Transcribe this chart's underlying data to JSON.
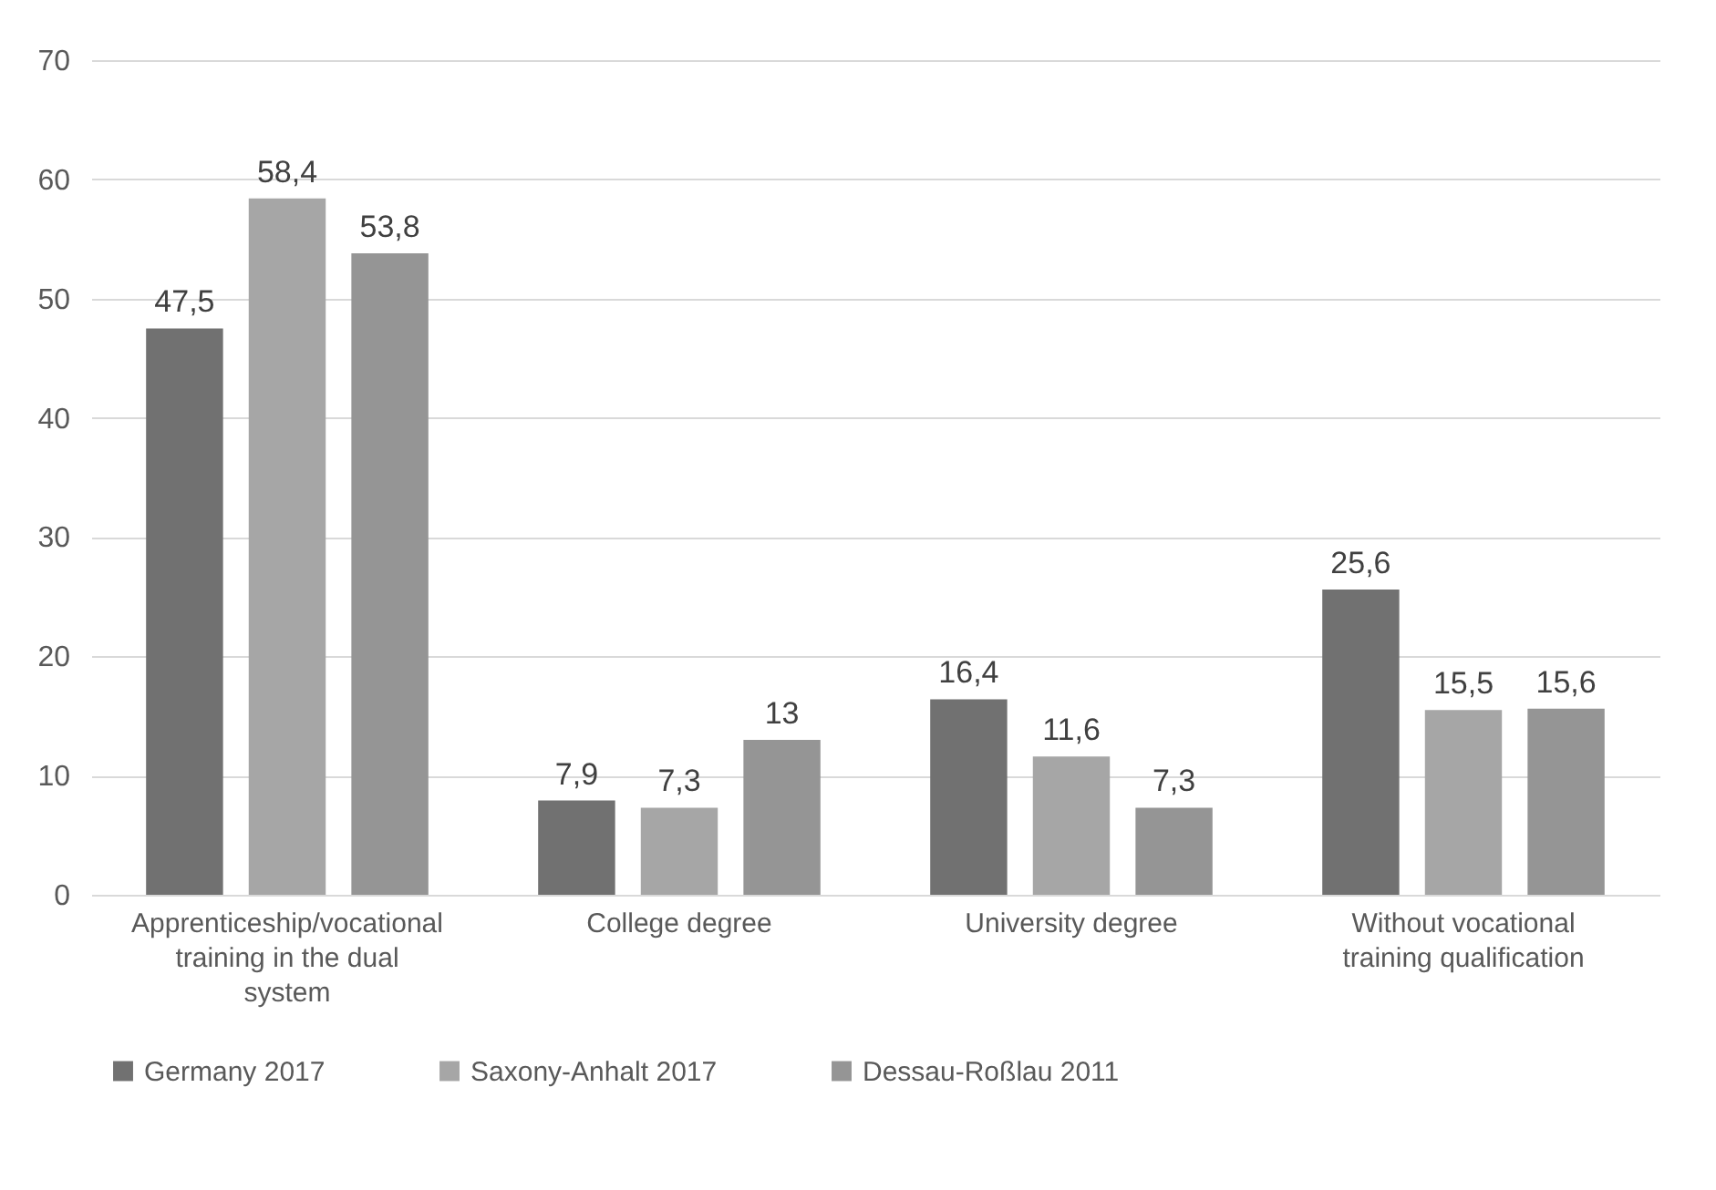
{
  "chart_data": {
    "type": "bar",
    "categories": [
      "Apprenticeship/vocational training in the dual system",
      "College degree",
      "University degree",
      "Without vocational training qualification"
    ],
    "series": [
      {
        "name": "Germany 2017",
        "color": "#717171",
        "values": [
          47.5,
          7.9,
          16.4,
          25.6
        ],
        "value_labels": [
          "47,5",
          "7,9",
          "16,4",
          "25,6"
        ]
      },
      {
        "name": "Saxony-Anhalt 2017",
        "color": "#a6a6a6",
        "values": [
          58.4,
          7.3,
          11.6,
          15.5
        ],
        "value_labels": [
          "58,4",
          "7,3",
          "11,6",
          "15,5"
        ]
      },
      {
        "name": "Dessau-Roßlau 2011",
        "color": "#959595",
        "values": [
          53.8,
          13,
          7.3,
          15.6
        ],
        "value_labels": [
          "53,8",
          "13",
          "7,3",
          "15,6"
        ]
      }
    ],
    "ylim": [
      0,
      70
    ],
    "yticks": [
      0,
      10,
      20,
      30,
      40,
      50,
      60,
      70
    ],
    "grid": "y",
    "legend": "bottom"
  }
}
